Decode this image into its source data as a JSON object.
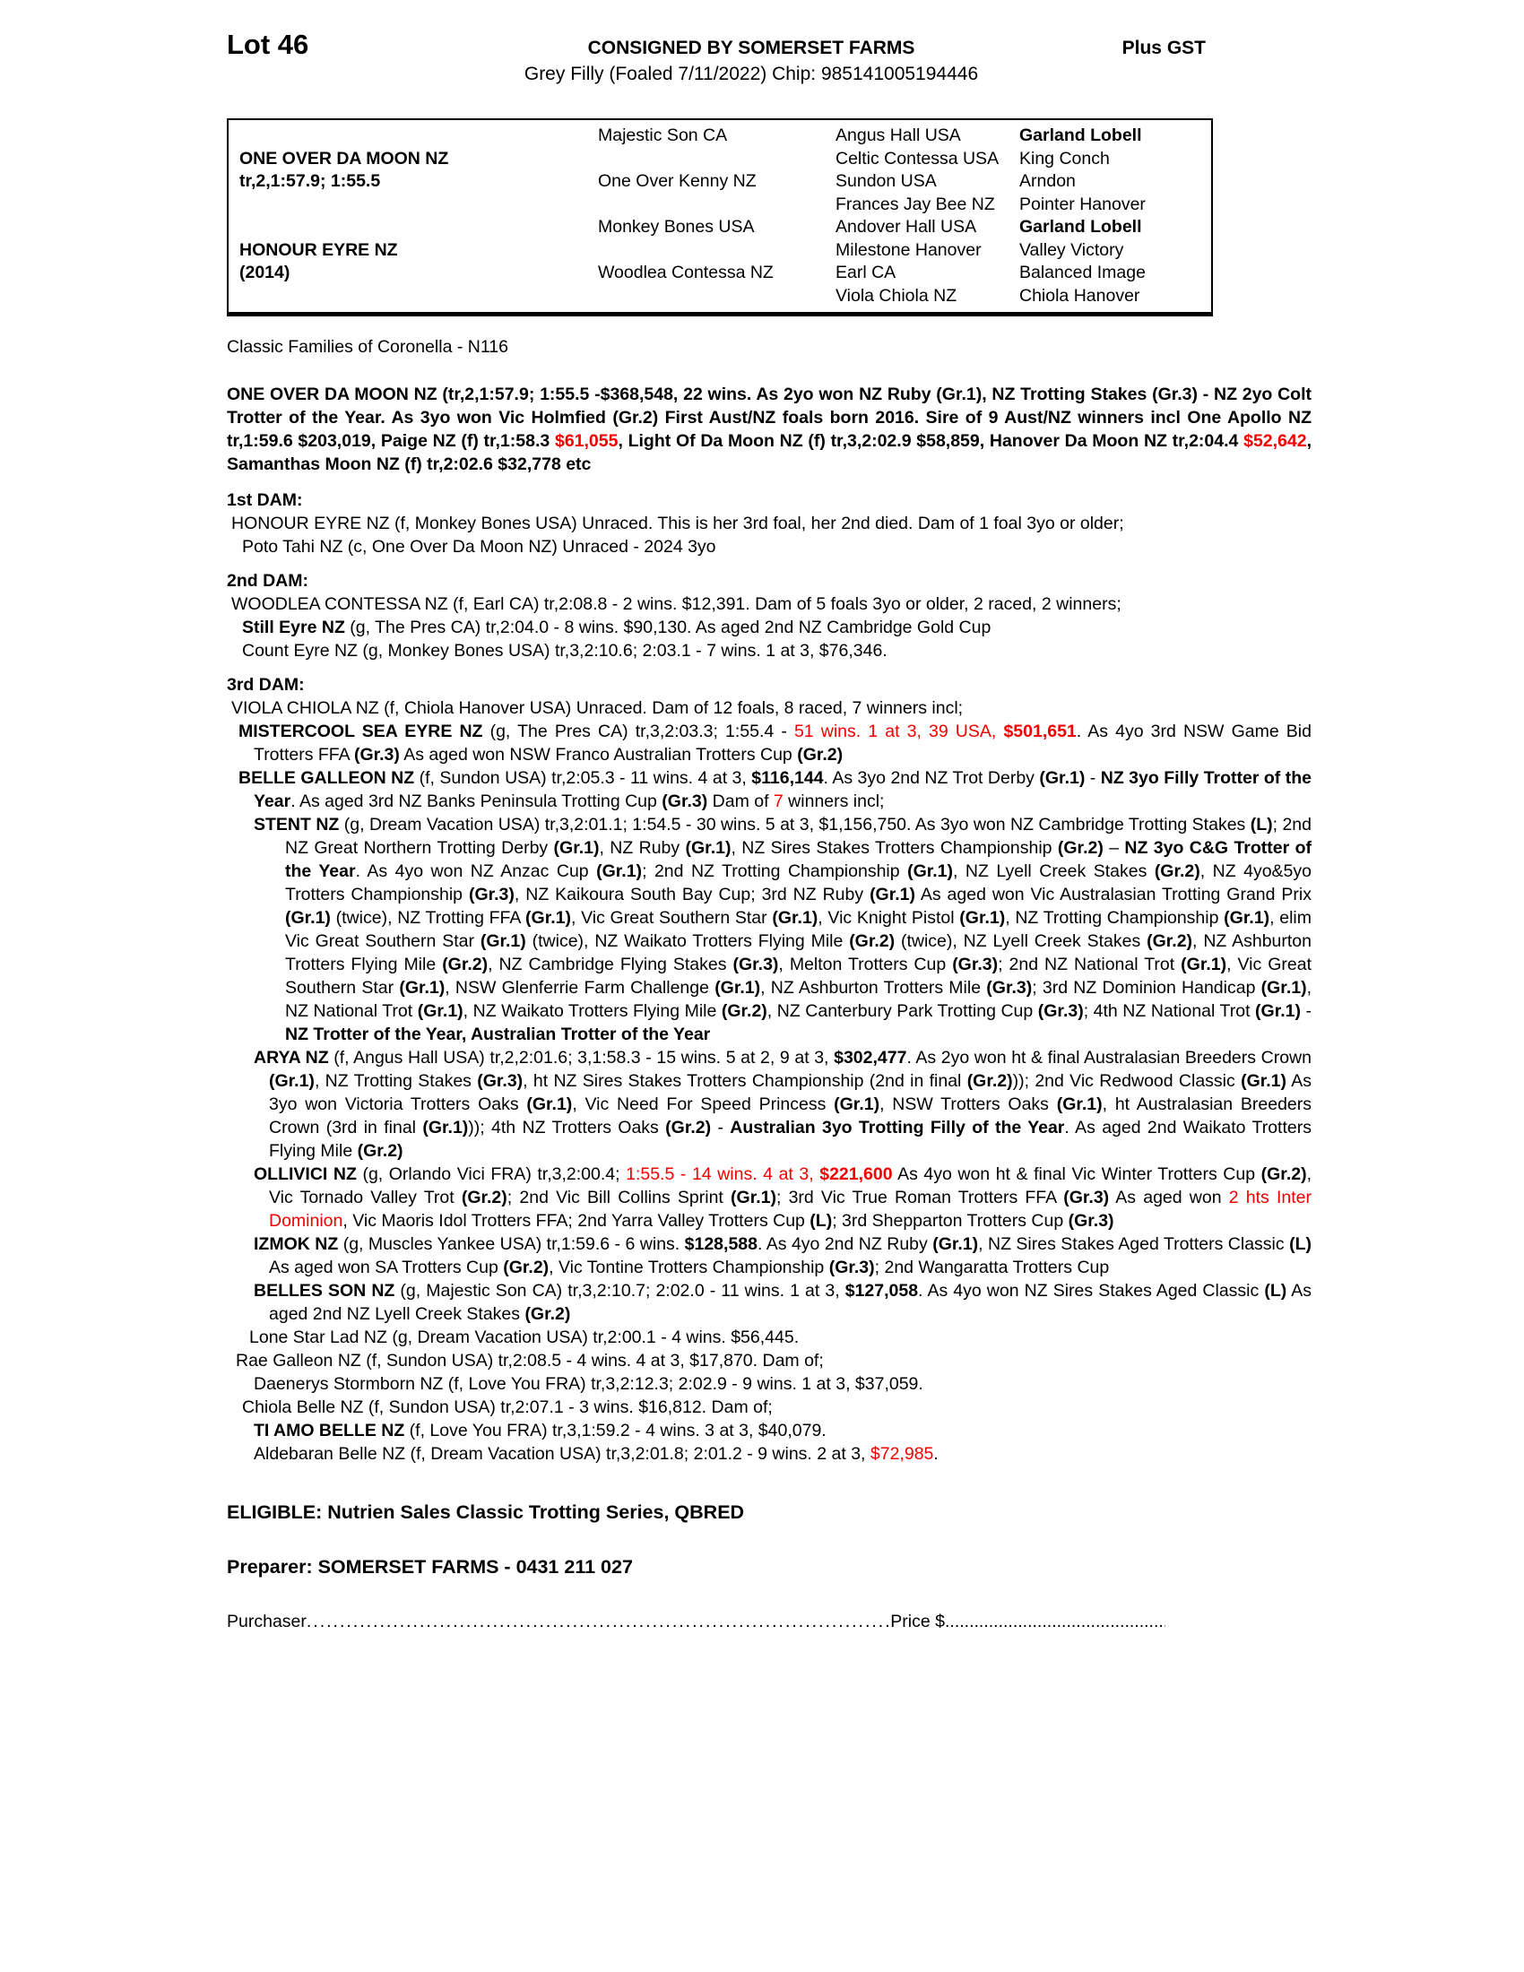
{
  "colors": {
    "red": "#f20000"
  },
  "header": {
    "lot": "Lot 46",
    "consignor": "CONSIGNED BY SOMERSET FARMS",
    "gst": "Plus GST",
    "description": "Grey Filly (Foaled 7/11/2022) Chip: 985141005194446"
  },
  "pedigree": {
    "rows": [
      [
        "",
        "Majestic Son CA",
        "Angus Hall USA",
        "Garland Lobell"
      ],
      [
        "ONE OVER DA MOON NZ",
        "",
        "Celtic Contessa USA",
        "King Conch"
      ],
      [
        "tr,2,1:57.9; 1:55.5",
        "One Over Kenny NZ",
        "Sundon USA",
        "Arndon"
      ],
      [
        "",
        "",
        "Frances Jay Bee NZ",
        "Pointer Hanover"
      ],
      [
        "",
        "Monkey Bones USA",
        "Andover Hall USA",
        "Garland Lobell"
      ],
      [
        "HONOUR EYRE NZ",
        "",
        "Milestone Hanover",
        "Valley Victory"
      ],
      [
        "(2014)",
        "Woodlea Contessa NZ",
        "Earl CA",
        "Balanced Image"
      ],
      [
        "",
        "",
        "Viola Chiola NZ",
        "Chiola Hanover"
      ]
    ]
  },
  "classic_families": "Classic Families of Coronella - N116",
  "sire_paragraph": [
    {
      "t": "ONE OVER DA MOON NZ (tr,2,1:57.9; 1:55.5 -$368,548, 22 wins. As 2yo won NZ Ruby (Gr.1), NZ Trotting Stakes (Gr.3) - NZ 2yo Colt Trotter of the Year. As 3yo won Vic Holmfied (Gr.2) First Aust/NZ foals born 2016. Sire of 9 Aust/NZ winners incl One Apollo NZ tr,1:59.6 $203,019, Paige NZ (f) tr,1:58.3 ",
      "s": "b"
    },
    {
      "t": "$61,055",
      "s": "br"
    },
    {
      "t": ", Light Of Da Moon NZ (f) tr,3,2:02.9 $58,859, Hanover Da Moon NZ tr,2:04.4 ",
      "s": "b"
    },
    {
      "t": "$52,642",
      "s": "br"
    },
    {
      "t": ", Samanthas Moon NZ (f) tr,2:02.6 $32,778 etc",
      "s": "b"
    }
  ],
  "dams": [
    {
      "heading": "1st DAM:",
      "paragraphs": [
        {
          "segs": [
            {
              "t": "HONOUR EYRE NZ (f, Monkey Bones USA) Unraced. This is her 3rd foal, her 2nd died. Dam of 1 foal 3yo or older;",
              "s": "p"
            }
          ]
        },
        {
          "segs": [
            {
              "t": "Poto Tahi NZ (c, One Over Da Moon NZ) Unraced - 2024 3yo",
              "s": "p"
            }
          ]
        }
      ]
    },
    {
      "heading": "2nd DAM:",
      "paragraphs": [
        {
          "segs": [
            {
              "t": "WOODLEA CONTESSA NZ (f, Earl CA) tr,2:08.8 - 2 wins. $12,391. Dam of 5 foals 3yo or older, 2 raced, 2 winners;",
              "s": "p"
            }
          ]
        },
        {
          "segs": [
            {
              "t": "Still Eyre NZ",
              "s": "b"
            },
            {
              "t": " (g, The Pres CA) tr,2:04.0 - 8 wins. $90,130. As aged 2nd NZ Cambridge Gold Cup",
              "s": "p"
            }
          ]
        },
        {
          "segs": [
            {
              "t": "Count Eyre NZ (g, Monkey Bones USA) tr,3,2:10.6; 2:03.1 - 7 wins. 1 at 3, $76,346.",
              "s": "p"
            }
          ]
        }
      ]
    },
    {
      "heading": "3rd DAM:",
      "paragraphs": [
        {
          "segs": [
            {
              "t": "VIOLA CHIOLA NZ (f, Chiola Hanover USA) Unraced. Dam of 12 foals, 8 raced, 7 winners incl;",
              "s": "p"
            }
          ]
        },
        {
          "segs": [
            {
              "t": "MISTERCOOL SEA EYRE NZ",
              "s": "b"
            },
            {
              "t": " (g, The Pres CA) tr,3,2:03.3; 1:55.4 - ",
              "s": "p"
            },
            {
              "t": "51 wins. 1 at 3, 39 USA, ",
              "s": "r"
            },
            {
              "t": "$501,651",
              "s": "br"
            },
            {
              "t": ". As 4yo 3rd NSW Game Bid Trotters FFA ",
              "s": "p"
            },
            {
              "t": "(Gr.3)",
              "s": "b"
            },
            {
              "t": " As aged won NSW Franco Australian Trotters Cup ",
              "s": "p"
            },
            {
              "t": "(Gr.2)",
              "s": "b"
            }
          ]
        },
        {
          "segs": [
            {
              "t": "BELLE GALLEON NZ",
              "s": "b"
            },
            {
              "t": " (f, Sundon USA) tr,2:05.3 - 11 wins. 4 at 3, ",
              "s": "p"
            },
            {
              "t": "$116,144",
              "s": "b"
            },
            {
              "t": ". As 3yo 2nd NZ Trot Derby ",
              "s": "p"
            },
            {
              "t": "(Gr.1)",
              "s": "b"
            },
            {
              "t": " - ",
              "s": "p"
            },
            {
              "t": "NZ 3yo Filly Trotter of the Year",
              "s": "b"
            },
            {
              "t": ". As aged 3rd NZ Banks Peninsula Trotting Cup ",
              "s": "p"
            },
            {
              "t": "(Gr.3)",
              "s": "b"
            },
            {
              "t": " Dam of ",
              "s": "p"
            },
            {
              "t": "7",
              "s": "r"
            },
            {
              "t": " winners incl;",
              "s": "p"
            }
          ]
        },
        {
          "segs": [
            {
              "t": "STENT NZ",
              "s": "b"
            },
            {
              "t": " (g, Dream Vacation USA) tr,3,2:01.1; 1:54.5 - 30 wins. 5 at 3, $1,156,750. As 3yo won NZ Cambridge Trotting Stakes ",
              "s": "p"
            },
            {
              "t": "(L)",
              "s": "b"
            },
            {
              "t": "; 2nd NZ Great Northern Trotting Derby ",
              "s": "p"
            },
            {
              "t": "(Gr.1)",
              "s": "b"
            },
            {
              "t": ", NZ Ruby ",
              "s": "p"
            },
            {
              "t": "(Gr.1)",
              "s": "b"
            },
            {
              "t": ", NZ Sires Stakes Trotters Championship ",
              "s": "p"
            },
            {
              "t": "(Gr.2)",
              "s": "b"
            },
            {
              "t": " – ",
              "s": "p"
            },
            {
              "t": "NZ 3yo C&G Trotter of the Year",
              "s": "b"
            },
            {
              "t": ". As 4yo won NZ Anzac Cup ",
              "s": "p"
            },
            {
              "t": "(Gr.1)",
              "s": "b"
            },
            {
              "t": "; 2nd NZ Trotting Championship ",
              "s": "p"
            },
            {
              "t": "(Gr.1)",
              "s": "b"
            },
            {
              "t": ", NZ Lyell Creek Stakes ",
              "s": "p"
            },
            {
              "t": "(Gr.2)",
              "s": "b"
            },
            {
              "t": ", NZ 4yo&5yo Trotters Championship ",
              "s": "p"
            },
            {
              "t": "(Gr.3)",
              "s": "b"
            },
            {
              "t": ", NZ Kaikoura South Bay Cup; 3rd NZ Ruby ",
              "s": "p"
            },
            {
              "t": "(Gr.1)",
              "s": "b"
            },
            {
              "t": " As aged won Vic Australasian Trotting Grand Prix ",
              "s": "p"
            },
            {
              "t": "(Gr.1)",
              "s": "b"
            },
            {
              "t": " (twice), NZ Trotting FFA ",
              "s": "p"
            },
            {
              "t": "(Gr.1)",
              "s": "b"
            },
            {
              "t": ", Vic Great Southern Star ",
              "s": "p"
            },
            {
              "t": "(Gr.1)",
              "s": "b"
            },
            {
              "t": ", Vic Knight Pistol ",
              "s": "p"
            },
            {
              "t": "(Gr.1)",
              "s": "b"
            },
            {
              "t": ", NZ Trotting Championship ",
              "s": "p"
            },
            {
              "t": "(Gr.1)",
              "s": "b"
            },
            {
              "t": ", elim Vic Great Southern Star ",
              "s": "p"
            },
            {
              "t": "(Gr.1)",
              "s": "b"
            },
            {
              "t": " (twice), NZ Waikato Trotters Flying Mile ",
              "s": "p"
            },
            {
              "t": "(Gr.2)",
              "s": "b"
            },
            {
              "t": " (twice), NZ Lyell Creek Stakes ",
              "s": "p"
            },
            {
              "t": "(Gr.2)",
              "s": "b"
            },
            {
              "t": ", NZ Ashburton Trotters Flying Mile ",
              "s": "p"
            },
            {
              "t": "(Gr.2)",
              "s": "b"
            },
            {
              "t": ", NZ Cambridge Flying Stakes ",
              "s": "p"
            },
            {
              "t": "(Gr.3)",
              "s": "b"
            },
            {
              "t": ", Melton Trotters Cup ",
              "s": "p"
            },
            {
              "t": "(Gr.3)",
              "s": "b"
            },
            {
              "t": "; 2nd NZ National Trot ",
              "s": "p"
            },
            {
              "t": "(Gr.1)",
              "s": "b"
            },
            {
              "t": ", Vic Great Southern Star ",
              "s": "p"
            },
            {
              "t": "(Gr.1)",
              "s": "b"
            },
            {
              "t": ", NSW Glenferrie Farm Challenge ",
              "s": "p"
            },
            {
              "t": "(Gr.1)",
              "s": "b"
            },
            {
              "t": ", NZ Ashburton Trotters Mile ",
              "s": "p"
            },
            {
              "t": "(Gr.3)",
              "s": "b"
            },
            {
              "t": "; 3rd NZ Dominion Handicap ",
              "s": "p"
            },
            {
              "t": "(Gr.1)",
              "s": "b"
            },
            {
              "t": ", NZ National Trot ",
              "s": "p"
            },
            {
              "t": "(Gr.1)",
              "s": "b"
            },
            {
              "t": ", NZ Waikato Trotters Flying Mile ",
              "s": "p"
            },
            {
              "t": "(Gr.2)",
              "s": "b"
            },
            {
              "t": ", NZ Canterbury Park Trotting Cup ",
              "s": "p"
            },
            {
              "t": "(Gr.3)",
              "s": "b"
            },
            {
              "t": "; 4th NZ National Trot ",
              "s": "p"
            },
            {
              "t": "(Gr.1)",
              "s": "b"
            },
            {
              "t": " - ",
              "s": "p"
            },
            {
              "t": "NZ Trotter of the Year, Australian Trotter of the Year",
              "s": "b"
            }
          ]
        },
        {
          "segs": [
            {
              "t": "ARYA NZ",
              "s": "b"
            },
            {
              "t": " (f, Angus Hall USA) tr,2,2:01.6; 3,1:58.3 - 15 wins. 5 at 2, 9 at 3, ",
              "s": "p"
            },
            {
              "t": "$302,477",
              "s": "b"
            },
            {
              "t": ". As 2yo won ht & final Australasian Breeders Crown ",
              "s": "p"
            },
            {
              "t": "(Gr.1)",
              "s": "b"
            },
            {
              "t": ", NZ Trotting Stakes ",
              "s": "p"
            },
            {
              "t": "(Gr.3)",
              "s": "b"
            },
            {
              "t": ", ht NZ Sires Stakes Trotters Championship (2nd in final ",
              "s": "p"
            },
            {
              "t": "(Gr.2)",
              "s": "b"
            },
            {
              "t": ")); 2nd Vic Redwood Classic ",
              "s": "p"
            },
            {
              "t": "(Gr.1)",
              "s": "b"
            },
            {
              "t": " As 3yo won Victoria Trotters Oaks ",
              "s": "p"
            },
            {
              "t": "(Gr.1)",
              "s": "b"
            },
            {
              "t": ", Vic Need For Speed Princess ",
              "s": "p"
            },
            {
              "t": "(Gr.1)",
              "s": "b"
            },
            {
              "t": ", NSW Trotters Oaks ",
              "s": "p"
            },
            {
              "t": "(Gr.1)",
              "s": "b"
            },
            {
              "t": ", ht Australasian Breeders Crown (3rd in final ",
              "s": "p"
            },
            {
              "t": "(Gr.1)",
              "s": "b"
            },
            {
              "t": ")); 4th NZ Trotters Oaks ",
              "s": "p"
            },
            {
              "t": "(Gr.2)",
              "s": "b"
            },
            {
              "t": " - ",
              "s": "p"
            },
            {
              "t": "Australian 3yo Trotting Filly of the Year",
              "s": "b"
            },
            {
              "t": ". As aged 2nd Waikato Trotters Flying Mile ",
              "s": "p"
            },
            {
              "t": "(Gr.2)",
              "s": "b"
            }
          ]
        },
        {
          "segs": [
            {
              "t": "OLLIVICI NZ",
              "s": "b"
            },
            {
              "t": " (g, Orlando Vici FRA) tr,3,2:00.4; ",
              "s": "p"
            },
            {
              "t": "1:55.5 - 14 wins. 4 at 3, ",
              "s": "r"
            },
            {
              "t": "$221,600",
              "s": "br"
            },
            {
              "t": " As 4yo won ht & final Vic Winter Trotters Cup ",
              "s": "p"
            },
            {
              "t": "(Gr.2)",
              "s": "b"
            },
            {
              "t": ", Vic Tornado Valley Trot ",
              "s": "p"
            },
            {
              "t": "(Gr.2)",
              "s": "b"
            },
            {
              "t": "; 2nd Vic Bill Collins Sprint ",
              "s": "p"
            },
            {
              "t": "(Gr.1)",
              "s": "b"
            },
            {
              "t": "; 3rd Vic True Roman Trotters FFA ",
              "s": "p"
            },
            {
              "t": "(Gr.3)",
              "s": "b"
            },
            {
              "t": " As aged won ",
              "s": "p"
            },
            {
              "t": "2 hts Inter Dominion",
              "s": "r"
            },
            {
              "t": ", Vic Maoris Idol Trotters FFA; 2nd Yarra Valley Trotters Cup ",
              "s": "p"
            },
            {
              "t": "(L)",
              "s": "b"
            },
            {
              "t": "; 3rd Shepparton Trotters Cup ",
              "s": "p"
            },
            {
              "t": "(Gr.3)",
              "s": "b"
            }
          ]
        },
        {
          "segs": [
            {
              "t": "IZMOK NZ",
              "s": "b"
            },
            {
              "t": " (g, Muscles Yankee USA) tr,1:59.6 - 6 wins. ",
              "s": "p"
            },
            {
              "t": "$128,588",
              "s": "b"
            },
            {
              "t": ". As 4yo 2nd NZ Ruby ",
              "s": "p"
            },
            {
              "t": "(Gr.1)",
              "s": "b"
            },
            {
              "t": ", NZ Sires Stakes Aged Trotters Classic ",
              "s": "p"
            },
            {
              "t": "(L)",
              "s": "b"
            },
            {
              "t": " As aged won SA Trotters Cup ",
              "s": "p"
            },
            {
              "t": "(Gr.2)",
              "s": "b"
            },
            {
              "t": ", Vic Tontine Trotters Championship ",
              "s": "p"
            },
            {
              "t": "(Gr.3)",
              "s": "b"
            },
            {
              "t": "; 2nd Wangaratta Trotters Cup",
              "s": "p"
            }
          ]
        },
        {
          "segs": [
            {
              "t": "BELLES SON NZ",
              "s": "b"
            },
            {
              "t": " (g, Majestic Son CA) tr,3,2:10.7; 2:02.0 - 11 wins. 1 at 3, ",
              "s": "p"
            },
            {
              "t": "$127,058",
              "s": "b"
            },
            {
              "t": ". As 4yo won NZ Sires Stakes Aged Classic ",
              "s": "p"
            },
            {
              "t": "(L)",
              "s": "b"
            },
            {
              "t": " As aged 2nd NZ Lyell Creek Stakes ",
              "s": "p"
            },
            {
              "t": "(Gr.2)",
              "s": "b"
            }
          ]
        },
        {
          "segs": [
            {
              "t": "Lone Star Lad NZ (g, Dream Vacation USA) tr,2:00.1 - 4 wins. $56,445.",
              "s": "p"
            }
          ]
        },
        {
          "segs": [
            {
              "t": "Rae Galleon NZ (f, Sundon USA) tr,2:08.5 - 4 wins. 4 at 3, $17,870. Dam of;",
              "s": "p"
            }
          ]
        },
        {
          "segs": [
            {
              "t": "Daenerys Stormborn NZ (f, Love You FRA) tr,3,2:12.3; 2:02.9 - 9 wins. 1 at 3, $37,059.",
              "s": "p"
            }
          ]
        },
        {
          "segs": [
            {
              "t": "Chiola Belle NZ (f, Sundon USA) tr,2:07.1 - 3 wins. $16,812. Dam of;",
              "s": "p"
            }
          ]
        },
        {
          "segs": [
            {
              "t": "TI AMO BELLE NZ",
              "s": "b"
            },
            {
              "t": " (f, Love You FRA) tr,3,1:59.2 - 4 wins. 3 at 3, $40,079.",
              "s": "p"
            }
          ]
        },
        {
          "segs": [
            {
              "t": "Aldebaran Belle NZ (f, Dream Vacation USA) tr,3,2:01.8; 2:01.2 - 9 wins. 2 at 3, ",
              "s": "p"
            },
            {
              "t": "$72,985",
              "s": "r"
            },
            {
              "t": ".",
              "s": "p"
            }
          ]
        }
      ]
    }
  ],
  "footer": {
    "eligible": "ELIGIBLE: Nutrien Sales Classic Trotting Series, QBRED",
    "preparer": "Preparer: SOMERSET FARMS - 0431 211 027",
    "purchaser_label": "Purchaser",
    "purchaser_leader": "..........................................................................................................................................................................",
    "price_label": "Price $",
    "price_leader": "...................................................................."
  }
}
